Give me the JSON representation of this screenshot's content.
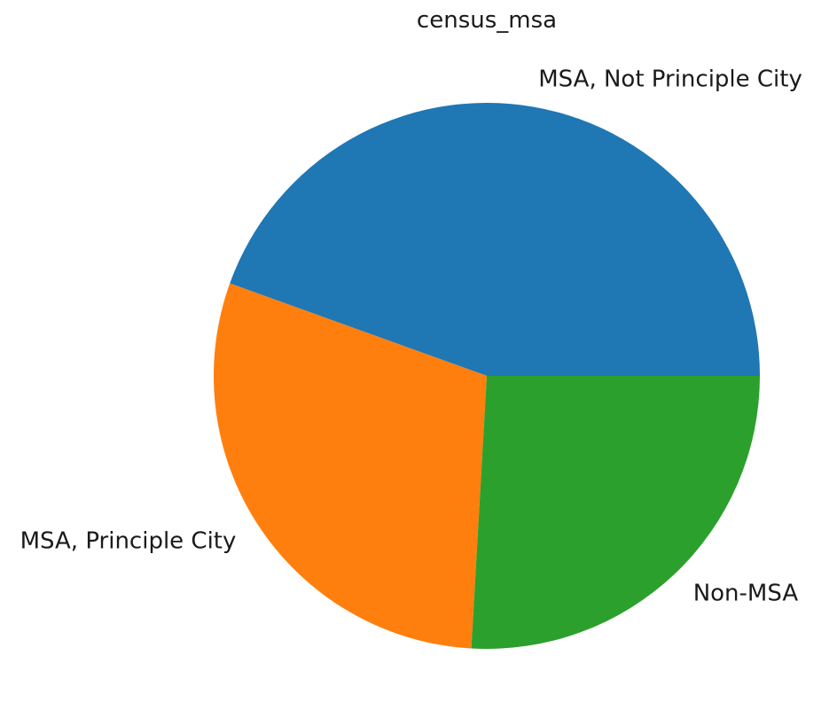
{
  "chart_data": {
    "type": "pie",
    "title": "census_msa",
    "start_angle_deg": 0,
    "direction": "counterclockwise",
    "labels": [
      "MSA, Not Principle  City",
      "MSA, Principle City",
      "Non-MSA"
    ],
    "values": [
      44.5,
      29.6,
      25.9
    ],
    "colors": [
      "#1f77b4",
      "#ff7f0e",
      "#2ca02c"
    ],
    "legend": "none",
    "grid": false
  }
}
